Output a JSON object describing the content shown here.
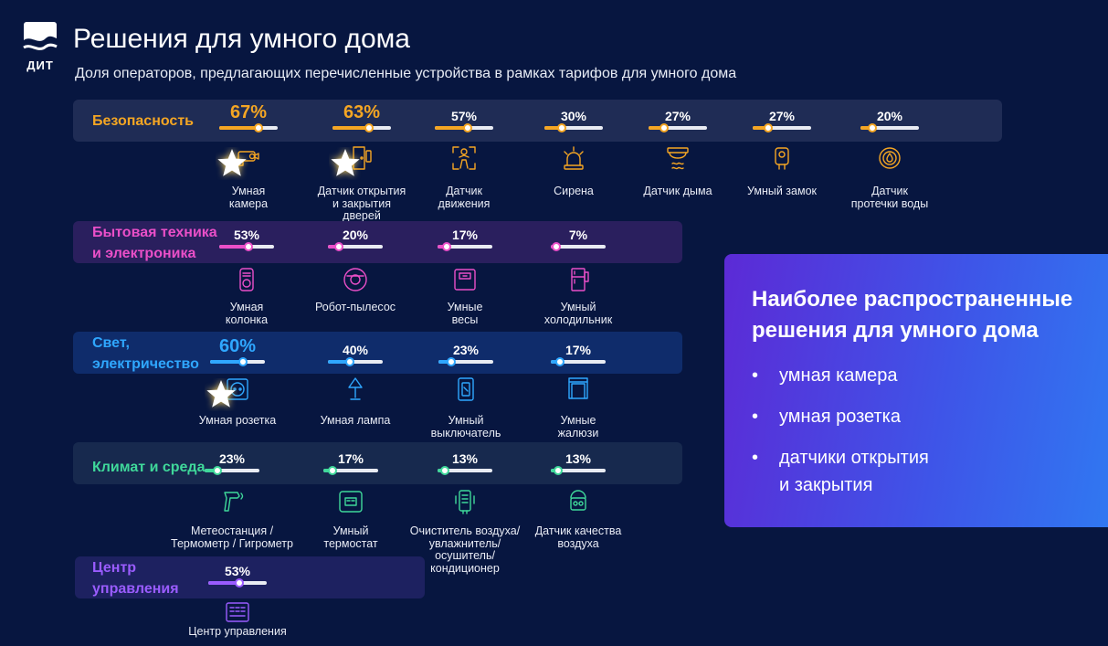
{
  "logo": {
    "text": "ДИТ"
  },
  "header": {
    "title": "Решения для умного дома",
    "subtitle": "Доля операторов, предлагающих перечисленные устройства в рамках тарифов для умного дома"
  },
  "colors": {
    "security": "#f5a623",
    "appliances": "#ea4fc8",
    "light": "#2fa7ff",
    "climate": "#3fd89a",
    "control": "#9a5cff",
    "background": "#071640"
  },
  "chart_data": {
    "type": "bar",
    "title": "Решения для умного дома",
    "subtitle": "Доля операторов, предлагающих перечисленные устройства в рамках тарифов для умного дома",
    "unit": "%",
    "ylim": [
      0,
      100
    ],
    "groups": [
      {
        "name": "Безопасность",
        "items": [
          {
            "label": "Умная\nкамера",
            "value": 67,
            "display": "67%",
            "icon": "camera-icon",
            "highlight": true
          },
          {
            "label": "Датчик открытия\nи закрытия\nдверей",
            "value": 63,
            "display": "63%",
            "icon": "door-sensor-icon",
            "highlight": true
          },
          {
            "label": "Датчик\nдвижения",
            "value": 57,
            "display": "57%",
            "icon": "motion-sensor-icon",
            "highlight": false
          },
          {
            "label": "Сирена",
            "value": 30,
            "display": "30%",
            "icon": "siren-icon",
            "highlight": false
          },
          {
            "label": "Датчик дыма",
            "value": 27,
            "display": "27%",
            "icon": "smoke-detector-icon",
            "highlight": false
          },
          {
            "label": "Умный замок",
            "value": 27,
            "display": "27%",
            "icon": "smart-lock-icon",
            "highlight": false
          },
          {
            "label": "Датчик\nпротечки воды",
            "value": 20,
            "display": "20%",
            "icon": "water-leak-icon",
            "highlight": false
          }
        ]
      },
      {
        "name": "Бытовая техника\nи электроника",
        "items": [
          {
            "label": "Умная\nколонка",
            "value": 53,
            "display": "53%",
            "icon": "speaker-icon",
            "highlight": false
          },
          {
            "label": "Робот-пылесос",
            "value": 20,
            "display": "20%",
            "icon": "robot-vacuum-icon",
            "highlight": false
          },
          {
            "label": "Умные\nвесы",
            "value": 17,
            "display": "17%",
            "icon": "scales-icon",
            "highlight": false
          },
          {
            "label": "Умный\nхолодильник",
            "value": 7,
            "display": "7%",
            "icon": "fridge-icon",
            "highlight": false
          }
        ]
      },
      {
        "name": "Свет,\nэлектричество",
        "items": [
          {
            "label": "Умная розетка",
            "value": 60,
            "display": "60%",
            "icon": "socket-icon",
            "highlight": true
          },
          {
            "label": "Умная лампа",
            "value": 40,
            "display": "40%",
            "icon": "lamp-icon",
            "highlight": false
          },
          {
            "label": "Умный\nвыключатель",
            "value": 23,
            "display": "23%",
            "icon": "switch-icon",
            "highlight": false
          },
          {
            "label": "Умные\nжалюзи",
            "value": 17,
            "display": "17%",
            "icon": "blinds-icon",
            "highlight": false
          }
        ]
      },
      {
        "name": "Климат и среда",
        "items": [
          {
            "label": "Метеостанция /\nТермометр /  Гигрометр",
            "value": 23,
            "display": "23%",
            "icon": "thermometer-icon",
            "highlight": false
          },
          {
            "label": "Умный\nтермостат",
            "value": 17,
            "display": "17%",
            "icon": "thermostat-icon",
            "highlight": false
          },
          {
            "label": "Очиститель воздуха/\nувлажнитель/\nосушитель/\nкондиционер",
            "value": 13,
            "display": "13%",
            "icon": "air-purifier-icon",
            "highlight": false
          },
          {
            "label": "Датчик качества\nвоздуха",
            "value": 13,
            "display": "13%",
            "icon": "air-quality-icon",
            "highlight": false
          }
        ]
      },
      {
        "name": "Центр\nуправления",
        "items": [
          {
            "label": "Центр управления",
            "value": 53,
            "display": "53%",
            "icon": "control-hub-icon",
            "highlight": false
          }
        ]
      }
    ]
  },
  "summary": {
    "title": "Наиболее распространенные решения для умного дома",
    "items": [
      "умная камера",
      "умная розетка",
      "датчики открытия\nи закрытия"
    ]
  }
}
